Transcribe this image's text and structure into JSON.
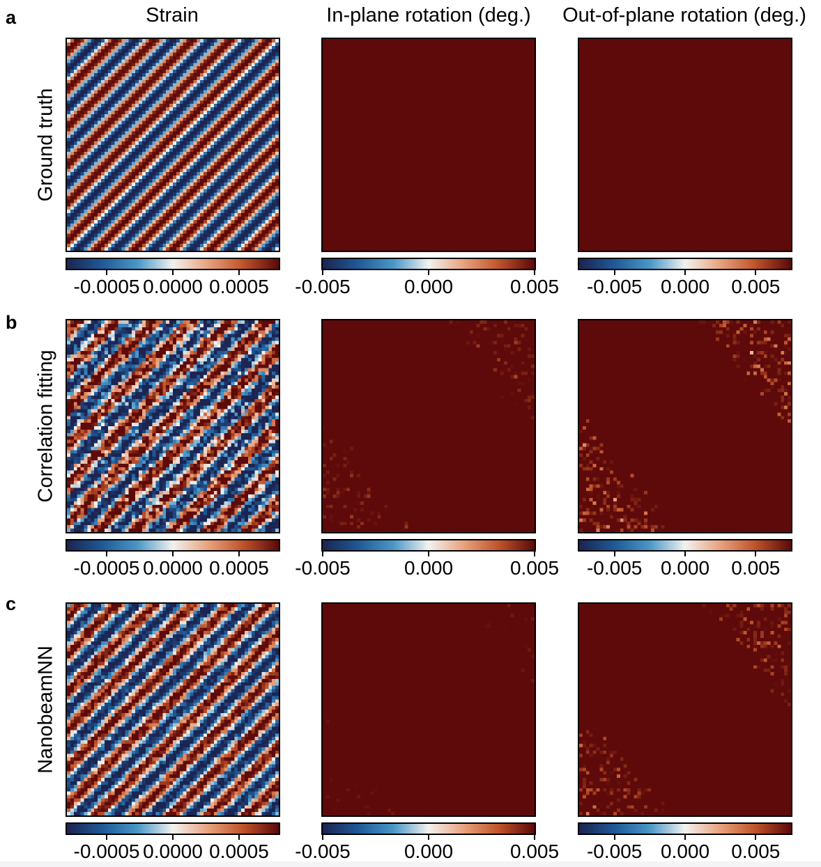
{
  "figure": {
    "column_titles": [
      "Strain",
      "In-plane rotation (deg.)",
      "Out-of-plane rotation (deg.)"
    ],
    "panel_letters": [
      "a",
      "b",
      "c"
    ],
    "row_labels": [
      "Ground truth",
      "Correlation fitting",
      "NanobeamNN"
    ]
  },
  "colors": {
    "colormap_stops": [
      "#1c2452",
      "#1f5a97",
      "#4a98c8",
      "#f2f2f0",
      "#e8a27e",
      "#c0532a",
      "#5e0a0a"
    ]
  },
  "chart_data": [
    {
      "type": "heatmap",
      "row": "Ground truth",
      "column": "Strain",
      "pattern": "stripes",
      "stripe_count": 11,
      "vmin": -0.0008,
      "vmax": 0.0008,
      "noise": 0.0,
      "colorbar_ticks": [
        -0.0005,
        0.0,
        0.0005
      ],
      "colorbar_tick_labels": [
        "-0.0005",
        "0.0000",
        "0.0005"
      ]
    },
    {
      "type": "heatmap",
      "row": "Ground truth",
      "column": "In-plane rotation (deg.)",
      "pattern": "diagonal-band",
      "vmin": -0.005,
      "vmax": 0.005,
      "noise": 0.0,
      "colorbar_ticks": [
        -0.005,
        0.0,
        0.005
      ],
      "colorbar_tick_labels": [
        "-0.005",
        "0.000",
        "0.005"
      ]
    },
    {
      "type": "heatmap",
      "row": "Ground truth",
      "column": "Out-of-plane rotation (deg.)",
      "pattern": "diagonal-band",
      "vmin": -0.0075,
      "vmax": 0.0075,
      "noise": 0.0,
      "colorbar_ticks": [
        -0.005,
        0.0,
        0.005
      ],
      "colorbar_tick_labels": [
        "-0.005",
        "0.000",
        "0.005"
      ]
    },
    {
      "type": "heatmap",
      "row": "Correlation fitting",
      "column": "Strain",
      "pattern": "stripes",
      "stripe_count": 11,
      "vmin": -0.0008,
      "vmax": 0.0008,
      "noise": 0.55,
      "colorbar_ticks": [
        -0.0005,
        0.0,
        0.0005
      ],
      "colorbar_tick_labels": [
        "-0.0005",
        "0.0000",
        "0.0005"
      ]
    },
    {
      "type": "heatmap",
      "row": "Correlation fitting",
      "column": "In-plane rotation (deg.)",
      "pattern": "diagonal-band-wavy",
      "vmin": -0.005,
      "vmax": 0.005,
      "noise": 0.25,
      "colorbar_ticks": [
        -0.005,
        0.0,
        0.005
      ],
      "colorbar_tick_labels": [
        "-0.005",
        "0.000",
        "0.005"
      ]
    },
    {
      "type": "heatmap",
      "row": "Correlation fitting",
      "column": "Out-of-plane rotation (deg.)",
      "pattern": "diagonal-band",
      "vmin": -0.0075,
      "vmax": 0.0075,
      "noise": 0.45,
      "colorbar_ticks": [
        -0.005,
        0.0,
        0.005
      ],
      "colorbar_tick_labels": [
        "-0.005",
        "0.000",
        "0.005"
      ]
    },
    {
      "type": "heatmap",
      "row": "NanobeamNN",
      "column": "Strain",
      "pattern": "stripes",
      "stripe_count": 11,
      "vmin": -0.0008,
      "vmax": 0.0008,
      "noise": 0.3,
      "colorbar_ticks": [
        -0.0005,
        0.0,
        0.0005
      ],
      "colorbar_tick_labels": [
        "-0.0005",
        "0.0000",
        "0.0005"
      ]
    },
    {
      "type": "heatmap",
      "row": "NanobeamNN",
      "column": "In-plane rotation (deg.)",
      "pattern": "diagonal-band",
      "vmin": -0.005,
      "vmax": 0.005,
      "noise": 0.15,
      "colorbar_ticks": [
        -0.005,
        0.0,
        0.005
      ],
      "colorbar_tick_labels": [
        "-0.005",
        "0.000",
        "0.005"
      ]
    },
    {
      "type": "heatmap",
      "row": "NanobeamNN",
      "column": "Out-of-plane rotation (deg.)",
      "pattern": "diagonal-band",
      "vmin": -0.0075,
      "vmax": 0.0075,
      "noise": 0.35,
      "colorbar_ticks": [
        -0.005,
        0.0,
        0.005
      ],
      "colorbar_tick_labels": [
        "-0.005",
        "0.000",
        "0.005"
      ]
    }
  ]
}
